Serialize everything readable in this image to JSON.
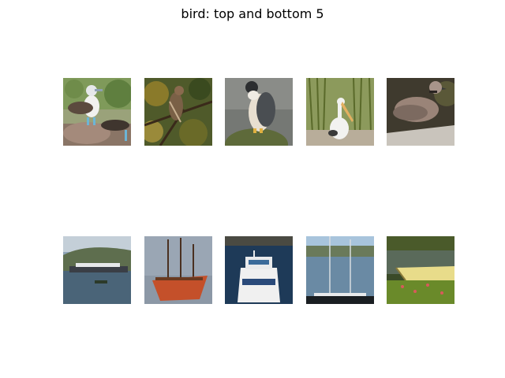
{
  "figure": {
    "title": "bird: top and bottom 5"
  },
  "top_images": [
    {
      "subject": "blue-footed booby on rock"
    },
    {
      "subject": "hawk perched in tree branches"
    },
    {
      "subject": "falcon perched on rock"
    },
    {
      "subject": "pelican standing in reeds"
    },
    {
      "subject": "collared dove on ground"
    }
  ],
  "bottom_images": [
    {
      "subject": "cruise ship on sea by hills"
    },
    {
      "subject": "red sailing ship on water"
    },
    {
      "subject": "white ferry boat on water"
    },
    {
      "subject": "sailboat masts in harbor"
    },
    {
      "subject": "yellow rowboat on grassy shore"
    }
  ]
}
